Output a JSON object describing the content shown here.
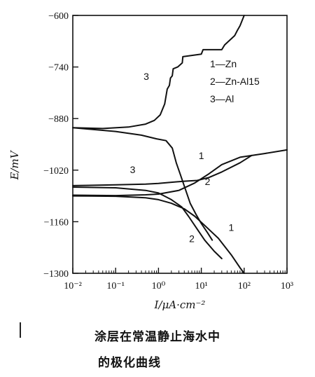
{
  "chart_data": {
    "type": "line",
    "xscale": "log",
    "xlabel": "I/μA·cm⁻²",
    "ylabel": "E/mV",
    "xlim": [
      0.01,
      1000
    ],
    "ylim": [
      -1300,
      -600
    ],
    "x_ticks": [
      {
        "value": 0.01,
        "label": "10⁻²"
      },
      {
        "value": 0.1,
        "label": "10⁻¹"
      },
      {
        "value": 1,
        "label": "10⁰"
      },
      {
        "value": 10,
        "label": "10¹"
      },
      {
        "value": 100,
        "label": "10²"
      },
      {
        "value": 1000,
        "label": "10³"
      }
    ],
    "y_ticks": [
      {
        "value": -600,
        "label": "−600"
      },
      {
        "value": -740,
        "label": "−740"
      },
      {
        "value": -880,
        "label": "−880"
      },
      {
        "value": -1020,
        "label": "−1020"
      },
      {
        "value": -1160,
        "label": "−1160"
      },
      {
        "value": -1300,
        "label": "−1300"
      }
    ],
    "legend": [
      "1—Zn",
      "2—Zn-Al15",
      "3—Al"
    ],
    "series": [
      {
        "label": "1",
        "branches": [
          {
            "x": [
              0.01,
              0.1,
              0.5,
              1,
              3,
              7,
              15,
              30,
              80,
              300,
              1000
            ],
            "y": [
              -1088,
              -1089,
              -1087,
              -1085,
              -1075,
              -1055,
              -1030,
              -1005,
              -985,
              -975,
              -965
            ]
          },
          {
            "x": [
              0.01,
              0.1,
              0.5,
              1,
              2,
              4,
              7,
              12,
              25,
              50,
              80,
              100
            ],
            "y": [
              -1090,
              -1091,
              -1095,
              -1100,
              -1110,
              -1125,
              -1145,
              -1170,
              -1205,
              -1250,
              -1285,
              -1300
            ]
          }
        ]
      },
      {
        "label": "2",
        "branches": [
          {
            "x": [
              0.01,
              0.1,
              0.5,
              1,
              2,
              4,
              8,
              15,
              30,
              80,
              150
            ],
            "y": [
              -1062,
              -1060,
              -1058,
              -1056,
              -1053,
              -1050,
              -1048,
              -1040,
              -1025,
              -1000,
              -980
            ]
          },
          {
            "x": [
              0.01,
              0.1,
              0.5,
              1,
              2,
              3.5,
              5,
              8,
              12,
              20,
              30
            ],
            "y": [
              -1066,
              -1068,
              -1075,
              -1082,
              -1100,
              -1120,
              -1145,
              -1180,
              -1210,
              -1240,
              -1260
            ]
          }
        ]
      },
      {
        "label": "3",
        "branches": [
          {
            "x": [
              0.01,
              0.05,
              0.2,
              0.5,
              0.8,
              1.1,
              1.4,
              1.6,
              1.8,
              1.9,
              2.1,
              2.2,
              2.8,
              3.6,
              3.7,
              10,
              11,
              30,
              35,
              60,
              70,
              80,
              100
            ],
            "y": [
              -905,
              -907,
              -903,
              -895,
              -885,
              -870,
              -840,
              -800,
              -790,
              -770,
              -764,
              -745,
              -740,
              -729,
              -712,
              -705,
              -693,
              -693,
              -680,
              -655,
              -640,
              -628,
              -600
            ]
          },
          {
            "x": [
              0.01,
              0.1,
              0.4,
              0.9,
              1.5,
              2.1,
              2.6,
              3.2,
              4.2,
              5.5,
              7.5,
              10,
              14,
              18
            ],
            "y": [
              -905,
              -915,
              -925,
              -935,
              -940,
              -960,
              -1000,
              -1030,
              -1070,
              -1110,
              -1140,
              -1165,
              -1190,
              -1210
            ]
          }
        ]
      }
    ],
    "curve_labels": [
      {
        "text": "3",
        "x": 0.52,
        "y": -775
      },
      {
        "text": "1",
        "x": 10,
        "y": -990
      },
      {
        "text": "3",
        "x": 0.25,
        "y": -1028
      },
      {
        "text": "2",
        "x": 14,
        "y": -1060
      },
      {
        "text": "1",
        "x": 50,
        "y": -1185
      },
      {
        "text": "2",
        "x": 6,
        "y": -1215
      }
    ]
  },
  "caption": {
    "line1": "涂层在常温静止海水中",
    "line2": "的极化曲线"
  }
}
